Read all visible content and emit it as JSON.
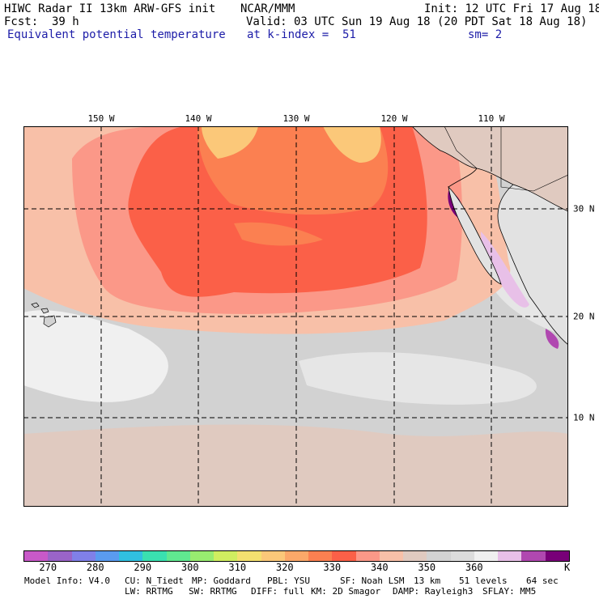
{
  "header": {
    "title": "HIWC Radar II 13km ARW-GFS init",
    "org": "NCAR/MMM",
    "init": "Init: 12 UTC Fri 17 Aug 18",
    "fcst_label": "Fcst:",
    "fcst_value": "39 h",
    "valid": "Valid: 03 UTC Sun 19 Aug 18 (20 PDT Sat 18 Aug 18)",
    "field": "Equivalent potential temperature",
    "level": "at k-index =  51",
    "smooth": "sm= 2"
  },
  "map": {
    "lon_labels": [
      "150 W",
      "140 W",
      "130 W",
      "120 W",
      "110 W"
    ],
    "lat_labels": [
      "30 N",
      "20 N",
      "10 N"
    ]
  },
  "colorbar": {
    "colors": [
      "#c859c8",
      "#9a64c8",
      "#8080e8",
      "#5a9bf0",
      "#30c0e0",
      "#3ae0b0",
      "#60e890",
      "#98ec70",
      "#d0ee60",
      "#f4e070",
      "#fbc879",
      "#fba869",
      "#fb8051",
      "#fb6048",
      "#fb9888",
      "#f8c0a8",
      "#e0cac0",
      "#d2d2d2",
      "#dcdcdc",
      "#f0f0f0",
      "#e8c0e8",
      "#b048b0",
      "#780078"
    ],
    "ticks": [
      "270",
      "280",
      "290",
      "300",
      "310",
      "320",
      "330",
      "340",
      "350",
      "360"
    ],
    "unit": "K"
  },
  "footer": {
    "line1": [
      "Model Info: V4.0",
      "CU: N_Tiedt",
      "MP: Goddard",
      "PBL: YSU",
      "SF: Noah LSM",
      "13 km",
      "51 levels",
      "64 sec"
    ],
    "line2": [
      "LW: RRTMG",
      "SW: RRTMG",
      "DIFF: full",
      "KM: 2D Smagor",
      "DAMP: Rayleigh3",
      "SFLAY: MM5"
    ]
  }
}
